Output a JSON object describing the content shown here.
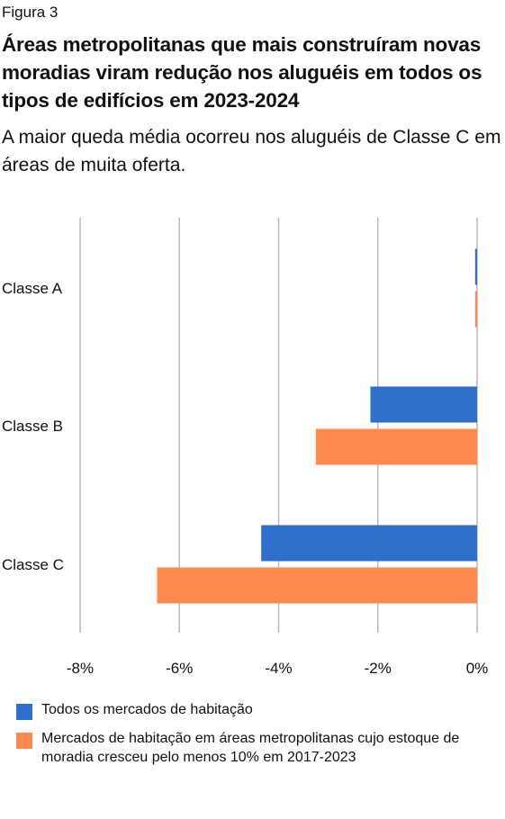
{
  "figure_label": "Figura 3",
  "title": "Áreas metropolitanas que mais construíram novas moradias viram redução nos aluguéis em todos os tipos de edifícios em 2023-2024",
  "subtitle": "A maior queda média ocorreu nos aluguéis de Classe C em áreas de muita oferta.",
  "chart_data": {
    "type": "bar",
    "orientation": "horizontal",
    "categories": [
      "Classe A",
      "Classe B",
      "Classe C"
    ],
    "series": [
      {
        "name": "Todos os mercados de habitação",
        "color": "#2e6fcb",
        "values": [
          -0.04,
          -2.15,
          -4.35
        ]
      },
      {
        "name": "Mercados de habitação em áreas metropolitanas cujo estoque de moradia cresceu pelo menos 10% em 2017-2023",
        "color": "#ff8a4f",
        "values": [
          -0.04,
          -3.25,
          -6.45
        ]
      }
    ],
    "xlim": [
      -8,
      0
    ],
    "xticks": [
      -8,
      -6,
      -4,
      -2,
      0
    ],
    "xtick_labels": [
      "-8%",
      "-6%",
      "-4%",
      "-2%",
      "0%"
    ],
    "xlabel": "",
    "ylabel": "",
    "grid": "vertical",
    "legend_position": "bottom"
  }
}
